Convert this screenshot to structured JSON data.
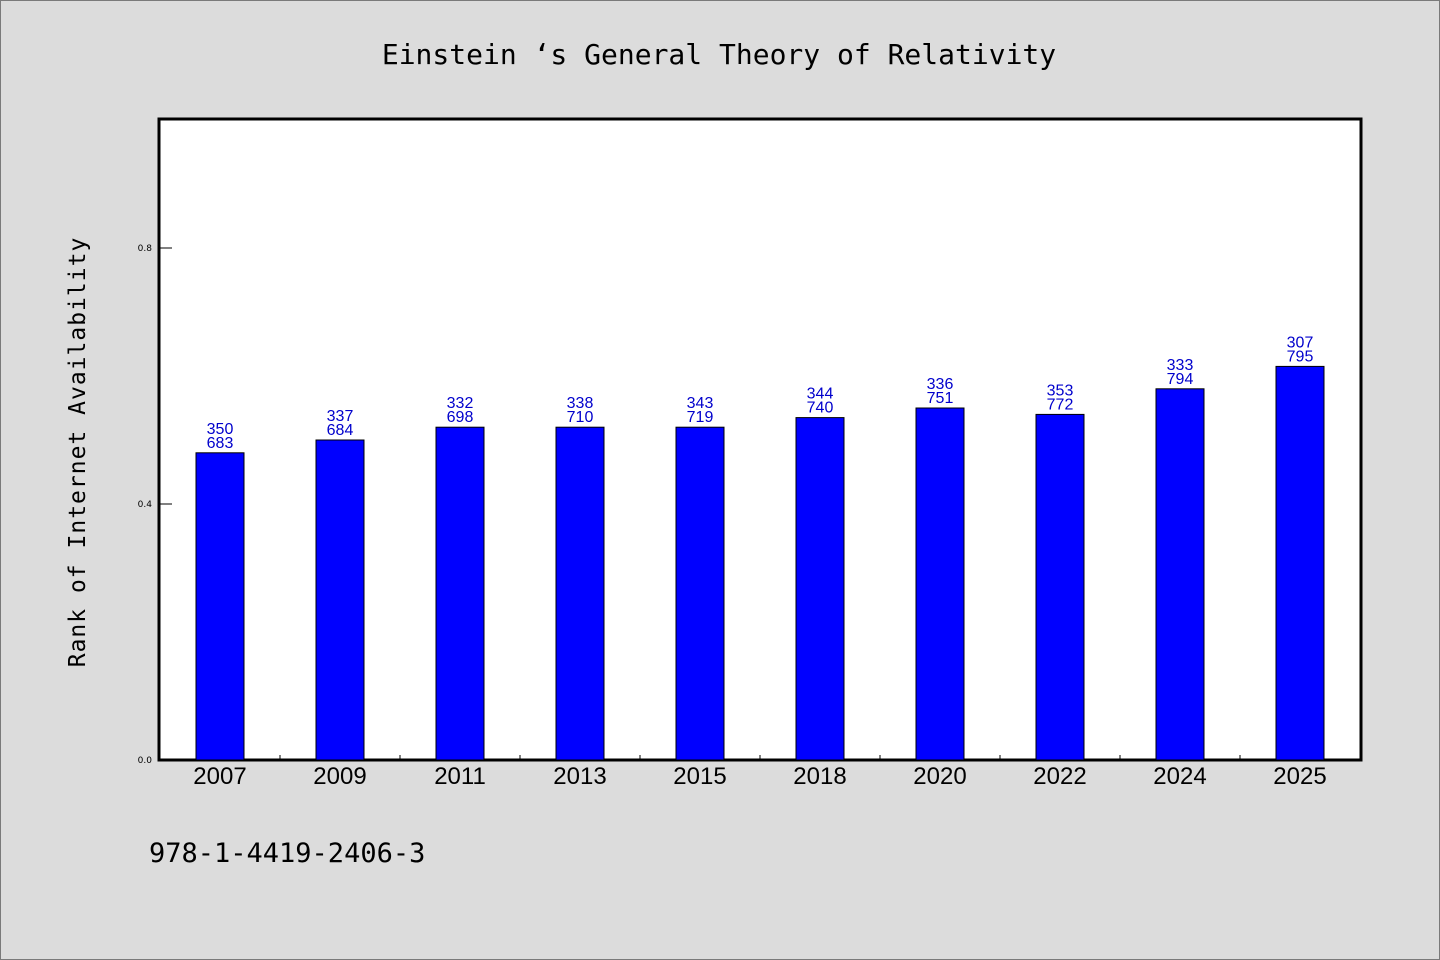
{
  "chart_data": {
    "type": "bar",
    "title": "Einstein ‘s General Theory of Relativity",
    "ylabel": "Rank of Internet Availability",
    "xlabel": "",
    "categories": [
      "2007",
      "2009",
      "2011",
      "2013",
      "2015",
      "2018",
      "2020",
      "2022",
      "2024",
      "2025"
    ],
    "values": [
      0.48,
      0.5,
      0.52,
      0.52,
      0.52,
      0.535,
      0.55,
      0.54,
      0.58,
      0.615
    ],
    "bar_labels": [
      [
        "350",
        "683"
      ],
      [
        "337",
        "684"
      ],
      [
        "332",
        "698"
      ],
      [
        "338",
        "710"
      ],
      [
        "343",
        "719"
      ],
      [
        "344",
        "740"
      ],
      [
        "336",
        "751"
      ],
      [
        "353",
        "772"
      ],
      [
        "333",
        "794"
      ],
      [
        "307",
        "795"
      ]
    ],
    "yticks": [
      "0.0",
      "0.4",
      "0.8"
    ],
    "ylim": [
      0,
      1.0
    ],
    "grid": false,
    "bar_color": "#0000ff",
    "label_color": "#0000cc"
  },
  "footer_text": "978-1-4419-2406-3"
}
